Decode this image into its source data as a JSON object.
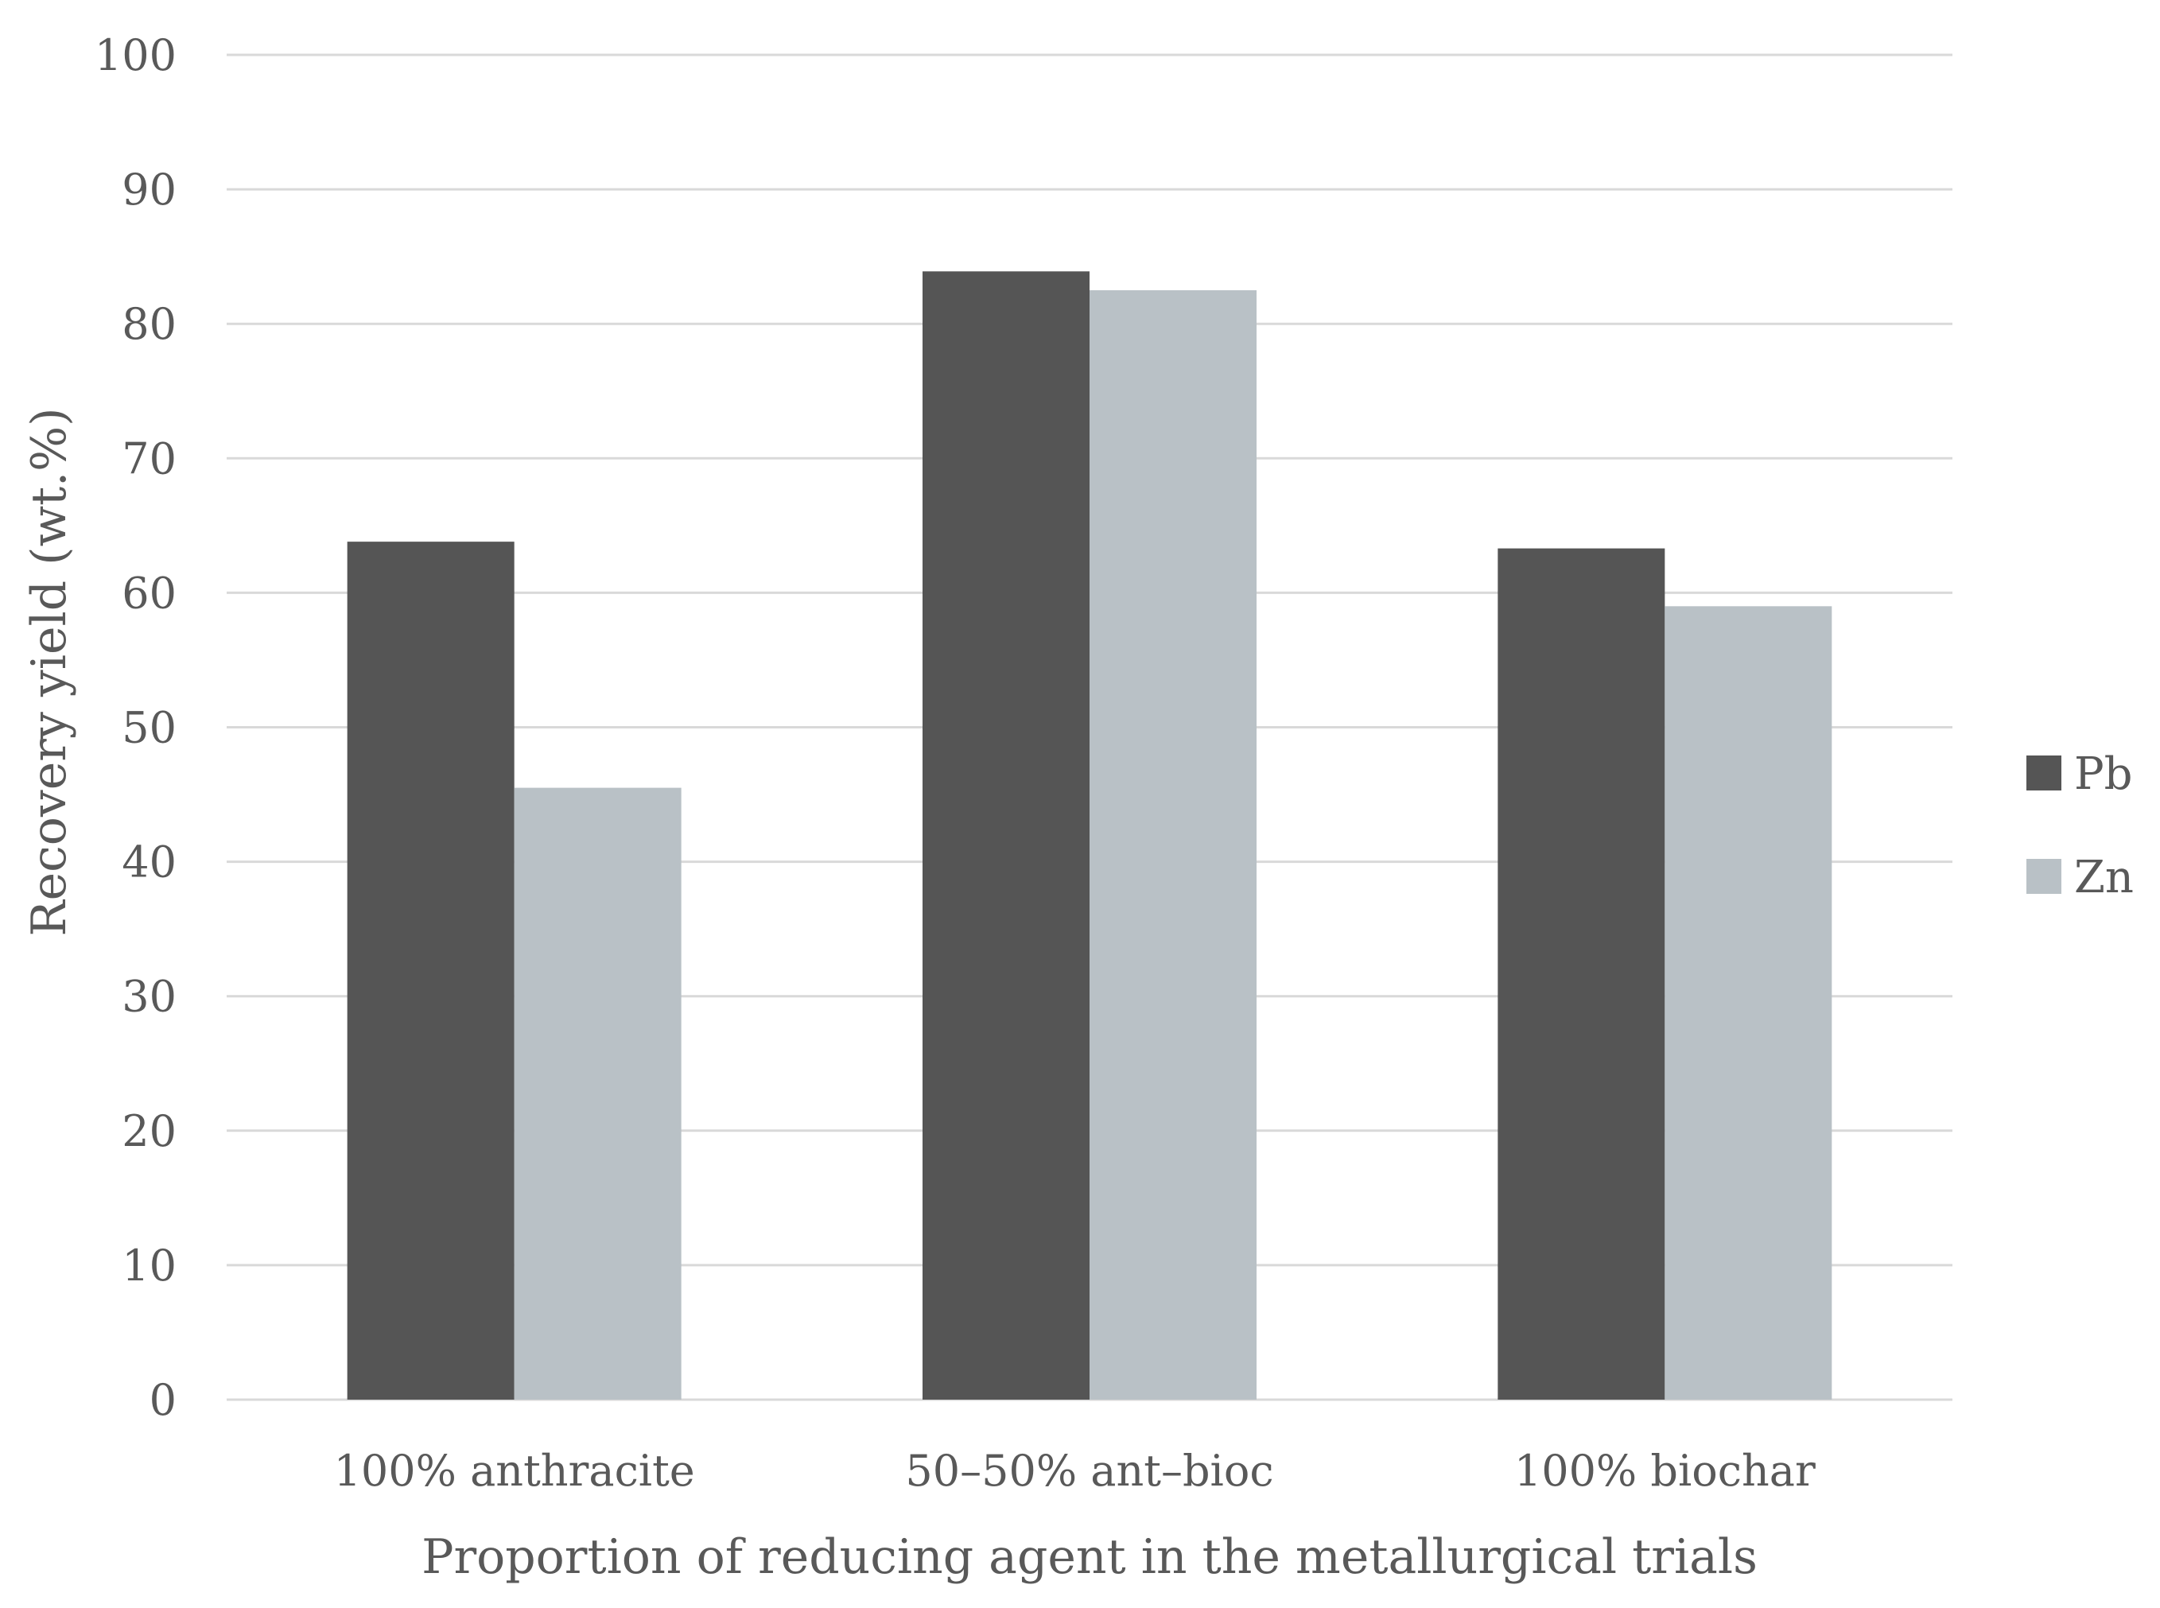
{
  "chart_data": {
    "type": "bar",
    "title": "",
    "xlabel": "Proportion of reducing agent in the metallurgical trials",
    "ylabel": "Recovery yield (wt.%)",
    "ylim": [
      0,
      100
    ],
    "yticks": [
      0,
      10,
      20,
      30,
      40,
      50,
      60,
      70,
      80,
      90,
      100
    ],
    "grid": true,
    "legend_position": "right",
    "categories": [
      "100% anthracite",
      "50–50% ant–bioc",
      "100% biochar"
    ],
    "series": [
      {
        "name": "Pb",
        "color": "#555555",
        "values": [
          63.8,
          83.9,
          63.3
        ]
      },
      {
        "name": "Zn",
        "color": "#b9c1c6",
        "values": [
          45.5,
          82.5,
          59.0
        ]
      }
    ]
  }
}
